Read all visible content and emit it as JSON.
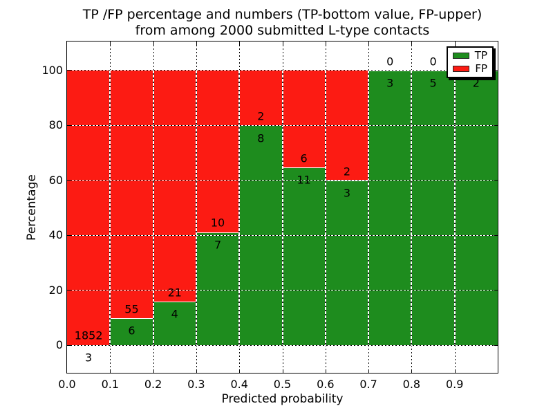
{
  "figure": {
    "title_line1": "TP /FP percentage and numbers (TP-bottom value, FP-upper)",
    "title_line2": "from among 2000 submitted L-type contacts",
    "xlabel": "Predicted probability",
    "ylabel": "Percentage"
  },
  "legend": {
    "position": "upper right",
    "items": [
      {
        "label": "TP",
        "color": "#1e8c1e"
      },
      {
        "label": "FP",
        "color": "#fc1b13"
      }
    ]
  },
  "chart_data": {
    "type": "bar",
    "stacked": true,
    "title": "TP /FP percentage and numbers (TP-bottom value, FP-upper) from among 2000 submitted L-type contacts",
    "xlabel": "Predicted probability",
    "ylabel": "Percentage",
    "xlim": [
      0.0,
      1.0
    ],
    "ylim": [
      -10.5,
      110
    ],
    "grid": "dotted",
    "legend_position": "upper right",
    "xtick_labels": [
      "0.0",
      "0.1",
      "0.2",
      "0.3",
      "0.4",
      "0.5",
      "0.6",
      "0.7",
      "0.8",
      "0.9"
    ],
    "ytick_values": [
      0,
      20,
      40,
      60,
      80,
      100
    ],
    "series": [
      {
        "name": "TP",
        "color": "#1e8c1e",
        "counts": [
          3,
          6,
          4,
          7,
          8,
          11,
          3,
          3,
          5,
          2
        ]
      },
      {
        "name": "FP",
        "color": "#fc1b13",
        "counts": [
          1852,
          55,
          21,
          10,
          2,
          6,
          2,
          0,
          0,
          0
        ]
      }
    ],
    "bins": [
      {
        "range": "0.0-0.1",
        "tp": 3,
        "fp": 1852
      },
      {
        "range": "0.1-0.2",
        "tp": 6,
        "fp": 55
      },
      {
        "range": "0.2-0.3",
        "tp": 4,
        "fp": 21
      },
      {
        "range": "0.3-0.4",
        "tp": 7,
        "fp": 10
      },
      {
        "range": "0.4-0.5",
        "tp": 8,
        "fp": 2
      },
      {
        "range": "0.5-0.6",
        "tp": 11,
        "fp": 6
      },
      {
        "range": "0.6-0.7",
        "tp": 3,
        "fp": 2
      },
      {
        "range": "0.7-0.8",
        "tp": 3,
        "fp": 0
      },
      {
        "range": "0.8-0.9",
        "tp": 5,
        "fp": 0
      },
      {
        "range": "0.9-1.0",
        "tp": 2,
        "fp": 0
      }
    ],
    "tp_percent_of_bin": [
      0.16,
      9.84,
      16.0,
      41.18,
      80.0,
      64.71,
      60.0,
      100.0,
      100.0,
      100.0
    ],
    "bar_annotation_rule": "TP count printed just below top of green bar, FP count just above it"
  }
}
